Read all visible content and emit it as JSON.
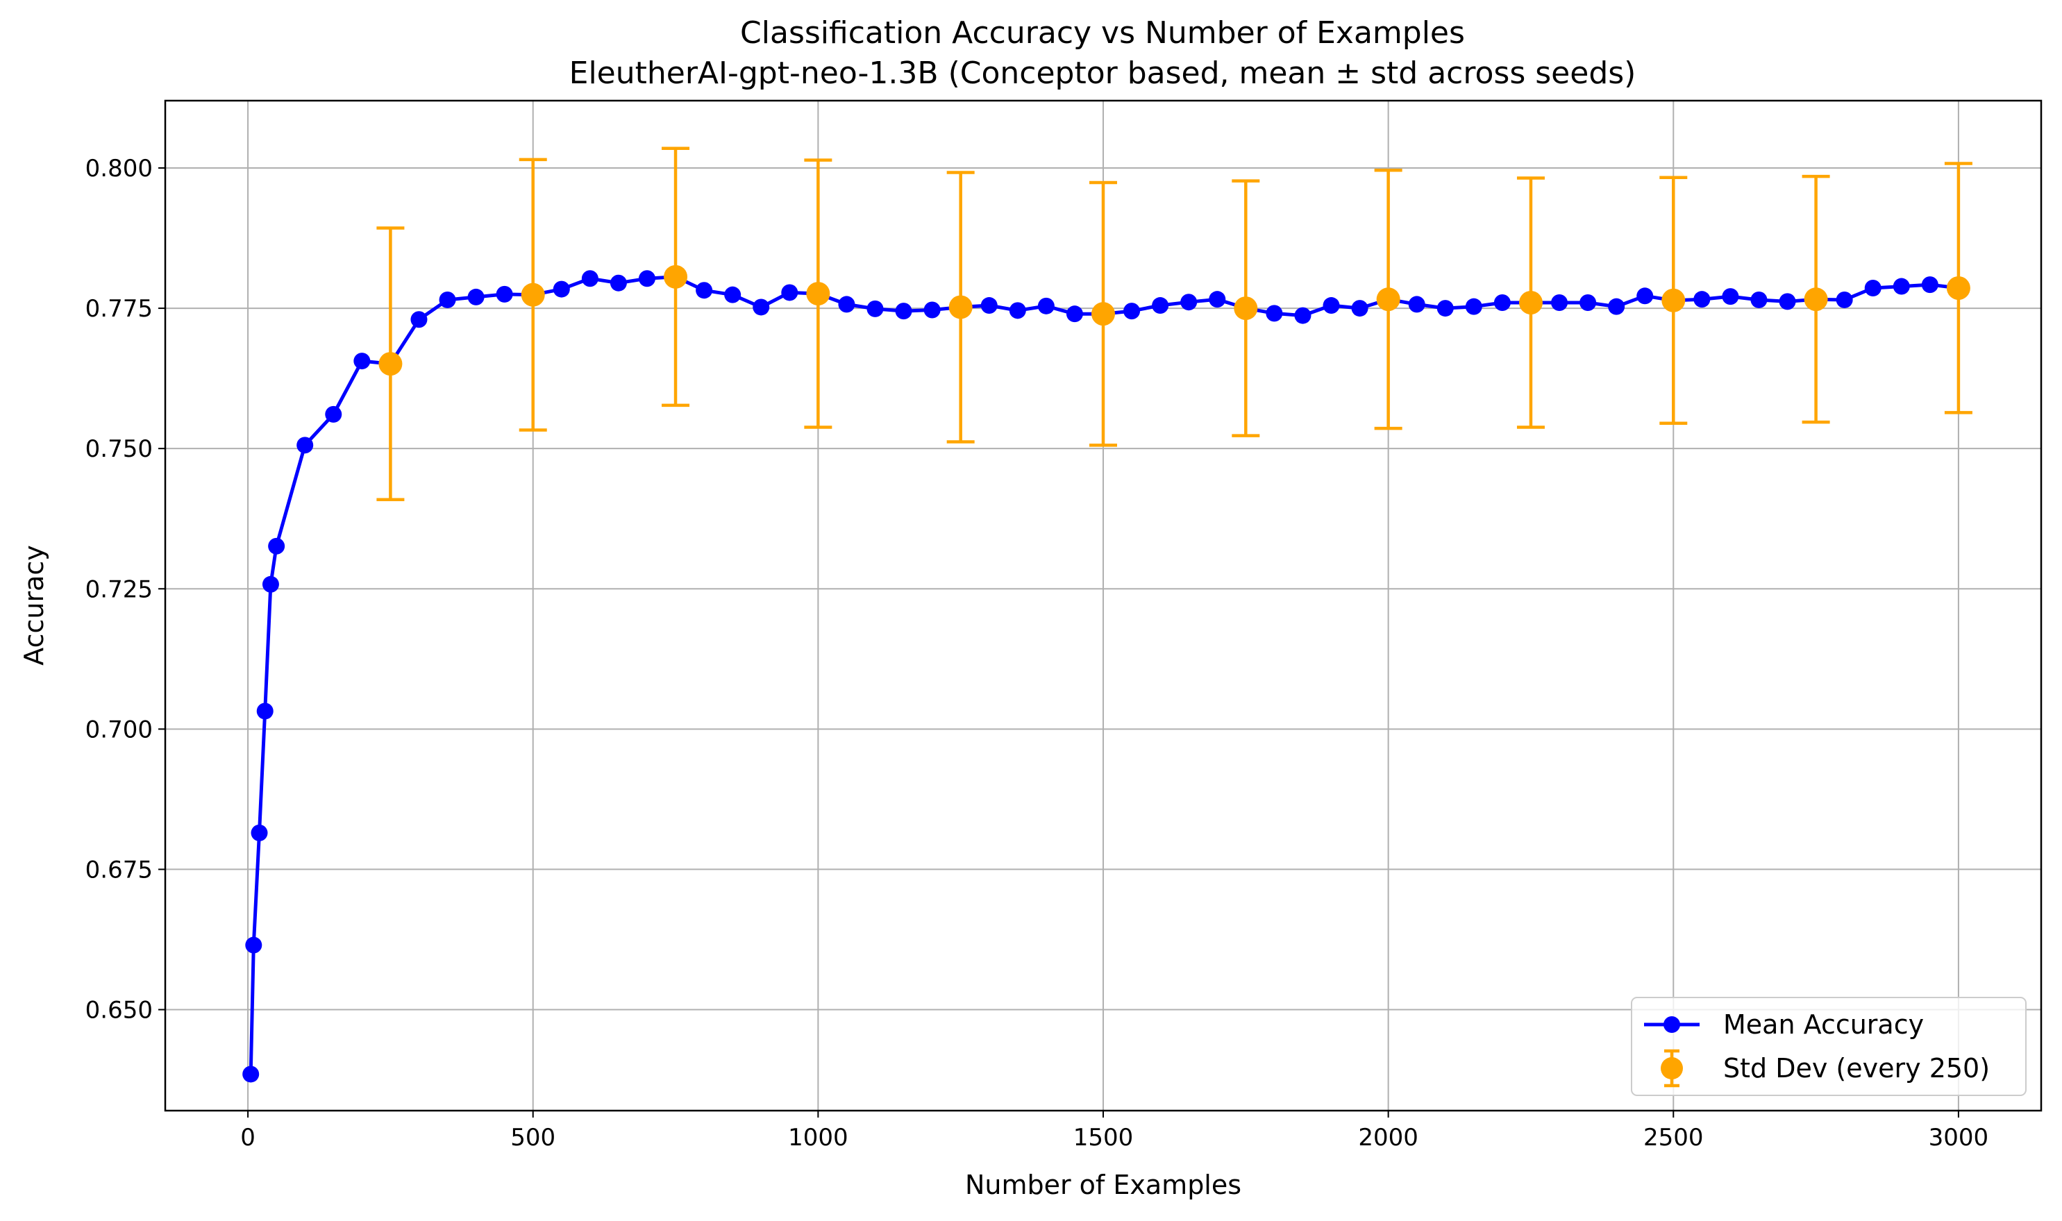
{
  "chart_data": {
    "type": "line",
    "title": "Classification Accuracy vs Number of Examples",
    "subtitle": "EleutherAI-gpt-neo-1.3B (Conceptor based, mean ± std across seeds)",
    "xlabel": "Number of Examples",
    "ylabel": "Accuracy",
    "xlim": [
      -145,
      3145
    ],
    "ylim": [
      0.632,
      0.812
    ],
    "xticks": [
      0,
      500,
      1000,
      1500,
      2000,
      2500,
      3000
    ],
    "xtick_labels": [
      "0",
      "500",
      "1000",
      "1500",
      "2000",
      "2500",
      "3000"
    ],
    "yticks": [
      0.65,
      0.675,
      0.7,
      0.725,
      0.75,
      0.775,
      0.8
    ],
    "ytick_labels": [
      "0.650",
      "0.675",
      "0.700",
      "0.725",
      "0.750",
      "0.775",
      "0.800"
    ],
    "grid": true,
    "legend_position": "lower-right",
    "series": [
      {
        "name": "Mean Accuracy",
        "color": "#0000ff",
        "marker": "circle",
        "x": [
          5,
          10,
          20,
          30,
          40,
          50,
          100,
          150,
          200,
          250,
          300,
          350,
          400,
          450,
          500,
          550,
          600,
          650,
          700,
          750,
          800,
          850,
          900,
          950,
          1000,
          1050,
          1100,
          1150,
          1200,
          1250,
          1300,
          1350,
          1400,
          1450,
          1500,
          1550,
          1600,
          1650,
          1700,
          1750,
          1800,
          1850,
          1900,
          1950,
          2000,
          2050,
          2100,
          2150,
          2200,
          2250,
          2300,
          2350,
          2400,
          2450,
          2500,
          2550,
          2600,
          2650,
          2700,
          2750,
          2800,
          2850,
          2900,
          2950,
          3000
        ],
        "y": [
          0.6385,
          0.6615,
          0.6815,
          0.7032,
          0.7258,
          0.7326,
          0.7506,
          0.7561,
          0.7656,
          0.7651,
          0.773,
          0.7765,
          0.777,
          0.7775,
          0.7774,
          0.7784,
          0.7803,
          0.7795,
          0.7803,
          0.7806,
          0.7782,
          0.7774,
          0.7752,
          0.7778,
          0.7776,
          0.7757,
          0.7749,
          0.7745,
          0.7747,
          0.7752,
          0.7755,
          0.7746,
          0.7754,
          0.774,
          0.774,
          0.7745,
          0.7755,
          0.7761,
          0.7766,
          0.775,
          0.7741,
          0.7737,
          0.7755,
          0.775,
          0.7766,
          0.7757,
          0.775,
          0.7753,
          0.776,
          0.776,
          0.776,
          0.776,
          0.7753,
          0.7772,
          0.7764,
          0.7766,
          0.7771,
          0.7765,
          0.7762,
          0.7766,
          0.7765,
          0.7786,
          0.7789,
          0.7792,
          0.7786
        ]
      },
      {
        "name": "Std Dev (every 250)",
        "color": "#ffa500",
        "marker": "circle",
        "x": [
          250,
          500,
          750,
          1000,
          1250,
          1500,
          1750,
          2000,
          2250,
          2500,
          2750,
          3000
        ],
        "y": [
          0.7651,
          0.7774,
          0.7806,
          0.7776,
          0.7752,
          0.774,
          0.775,
          0.7766,
          0.776,
          0.7764,
          0.7766,
          0.7786
        ],
        "std": [
          0.0242,
          0.0241,
          0.0229,
          0.0238,
          0.024,
          0.0234,
          0.0227,
          0.023,
          0.0222,
          0.0219,
          0.0219,
          0.0222
        ]
      }
    ]
  }
}
